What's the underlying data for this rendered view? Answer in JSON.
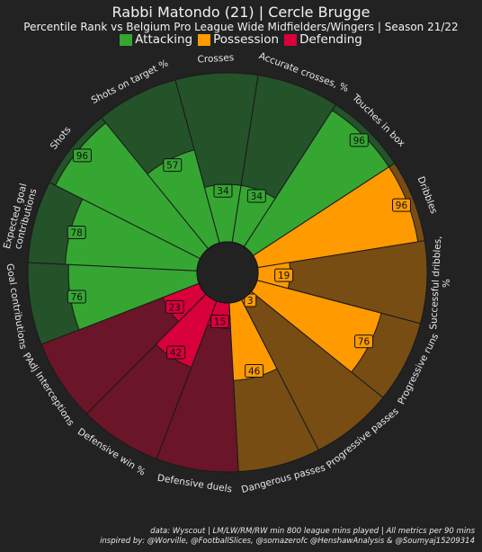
{
  "header": {
    "title": "Rabbi Matondo (21) | Cercle Brugge",
    "subtitle": "Percentile Rank vs Belgium Pro League Wide Midfielders/Wingers | Season 21/22"
  },
  "legend": [
    {
      "label": "Attacking",
      "color": "#35a632"
    },
    {
      "label": "Possession",
      "color": "#ff9a00"
    },
    {
      "label": "Defending",
      "color": "#d8003a"
    }
  ],
  "footer": {
    "line1": "data: Wyscout | LM/LW/RM/RW min 800 league mins played | All metrics per 90 mins",
    "line2": "inspired by: @Worville, @FootballSlices, @somazerofc @HenshawAnalysis & @Soumyaj15209314"
  },
  "colors": {
    "background": "#222222",
    "attacking": "#35a632",
    "attacking_bg": "#245229",
    "possession": "#ff9a00",
    "possession_bg": "#774d14",
    "defending": "#d8003a",
    "defending_bg": "#6a1528"
  },
  "chart_data": {
    "type": "polar-bar",
    "value_range": [
      0,
      100
    ],
    "metrics": [
      {
        "label": "Goal contributions",
        "value": 76,
        "group": "Attacking"
      },
      {
        "label": "Expected goal contributions",
        "value": 78,
        "group": "Attacking"
      },
      {
        "label": "Shots",
        "value": 96,
        "group": "Attacking"
      },
      {
        "label": "Shots on target %",
        "value": 57,
        "group": "Attacking"
      },
      {
        "label": "Crosses",
        "value": 34,
        "group": "Attacking"
      },
      {
        "label": "Accurate crosses, %",
        "value": 34,
        "group": "Attacking"
      },
      {
        "label": "Touches in box",
        "value": 96,
        "group": "Attacking"
      },
      {
        "label": "Dribbles",
        "value": 96,
        "group": "Possession"
      },
      {
        "label": "Successful dribbles, %",
        "value": 19,
        "group": "Possession"
      },
      {
        "label": "Progressive runs",
        "value": 76,
        "group": "Possession"
      },
      {
        "label": "Progressive passes",
        "value": 3,
        "group": "Possession"
      },
      {
        "label": "Dangerous passes",
        "value": 46,
        "group": "Possession"
      },
      {
        "label": "Defensive duels",
        "value": 15,
        "group": "Defending"
      },
      {
        "label": "Defensive win %",
        "value": 42,
        "group": "Defending"
      },
      {
        "label": "PAdj Interceptions",
        "value": 23,
        "group": "Defending"
      }
    ]
  }
}
